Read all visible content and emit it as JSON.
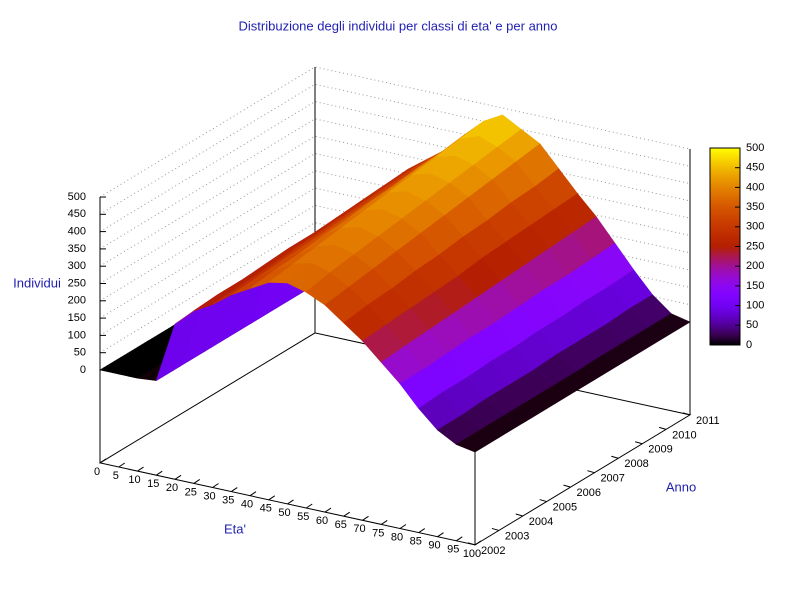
{
  "chart_data": {
    "type": "surface",
    "title": "Distribuzione degli individui per classi di eta' e per anno",
    "xlabel": "Eta'",
    "ylabel": "Anno",
    "zlabel": "Individui",
    "x": [
      0,
      5,
      10,
      15,
      20,
      25,
      30,
      35,
      40,
      45,
      50,
      55,
      60,
      65,
      70,
      75,
      80,
      85,
      90,
      95,
      100
    ],
    "y": [
      2002,
      2003,
      2004,
      2005,
      2006,
      2007,
      2008,
      2009,
      2010,
      2011
    ],
    "values": [
      [
        0,
        0,
        0,
        5,
        180,
        230,
        260,
        300,
        330,
        360,
        370,
        355,
        330,
        290,
        250,
        200,
        150,
        90,
        40,
        10,
        0
      ],
      [
        0,
        0,
        0,
        5,
        185,
        235,
        265,
        305,
        340,
        370,
        385,
        370,
        340,
        300,
        255,
        205,
        150,
        95,
        40,
        10,
        0
      ],
      [
        0,
        0,
        0,
        5,
        190,
        235,
        270,
        310,
        345,
        380,
        395,
        380,
        350,
        305,
        260,
        210,
        155,
        95,
        45,
        10,
        0
      ],
      [
        0,
        0,
        0,
        5,
        190,
        240,
        275,
        315,
        355,
        390,
        405,
        390,
        360,
        315,
        265,
        215,
        160,
        100,
        45,
        10,
        0
      ],
      [
        0,
        0,
        0,
        5,
        195,
        245,
        280,
        320,
        360,
        400,
        415,
        400,
        370,
        320,
        270,
        220,
        160,
        100,
        45,
        10,
        0
      ],
      [
        0,
        0,
        0,
        5,
        200,
        245,
        285,
        325,
        370,
        410,
        425,
        410,
        380,
        330,
        280,
        225,
        165,
        105,
        50,
        10,
        0
      ],
      [
        0,
        0,
        0,
        5,
        200,
        250,
        290,
        330,
        375,
        420,
        435,
        420,
        390,
        335,
        285,
        230,
        170,
        105,
        50,
        12,
        0
      ],
      [
        0,
        0,
        0,
        5,
        205,
        255,
        295,
        335,
        385,
        430,
        445,
        430,
        400,
        345,
        290,
        235,
        170,
        110,
        50,
        12,
        0
      ],
      [
        0,
        0,
        0,
        5,
        210,
        260,
        300,
        340,
        390,
        440,
        460,
        440,
        410,
        350,
        295,
        240,
        175,
        110,
        55,
        12,
        0
      ],
      [
        0,
        0,
        0,
        5,
        210,
        265,
        305,
        345,
        400,
        450,
        480,
        450,
        420,
        360,
        300,
        245,
        180,
        115,
        55,
        12,
        0
      ]
    ],
    "xlim": [
      0,
      100
    ],
    "xticks": [
      0,
      5,
      10,
      15,
      20,
      25,
      30,
      35,
      40,
      45,
      50,
      55,
      60,
      65,
      70,
      75,
      80,
      85,
      90,
      95,
      100
    ],
    "ylim": [
      2002,
      2011
    ],
    "yticks": [
      2002,
      2003,
      2004,
      2005,
      2006,
      2007,
      2008,
      2009,
      2010,
      2011
    ],
    "zlim": [
      0,
      500
    ],
    "zticks": [
      0,
      50,
      100,
      150,
      200,
      250,
      300,
      350,
      400,
      450,
      500
    ],
    "cblim": [
      0,
      500
    ],
    "cbticks": [
      0,
      50,
      100,
      150,
      200,
      250,
      300,
      350,
      400,
      450,
      500
    ],
    "grid": true
  }
}
